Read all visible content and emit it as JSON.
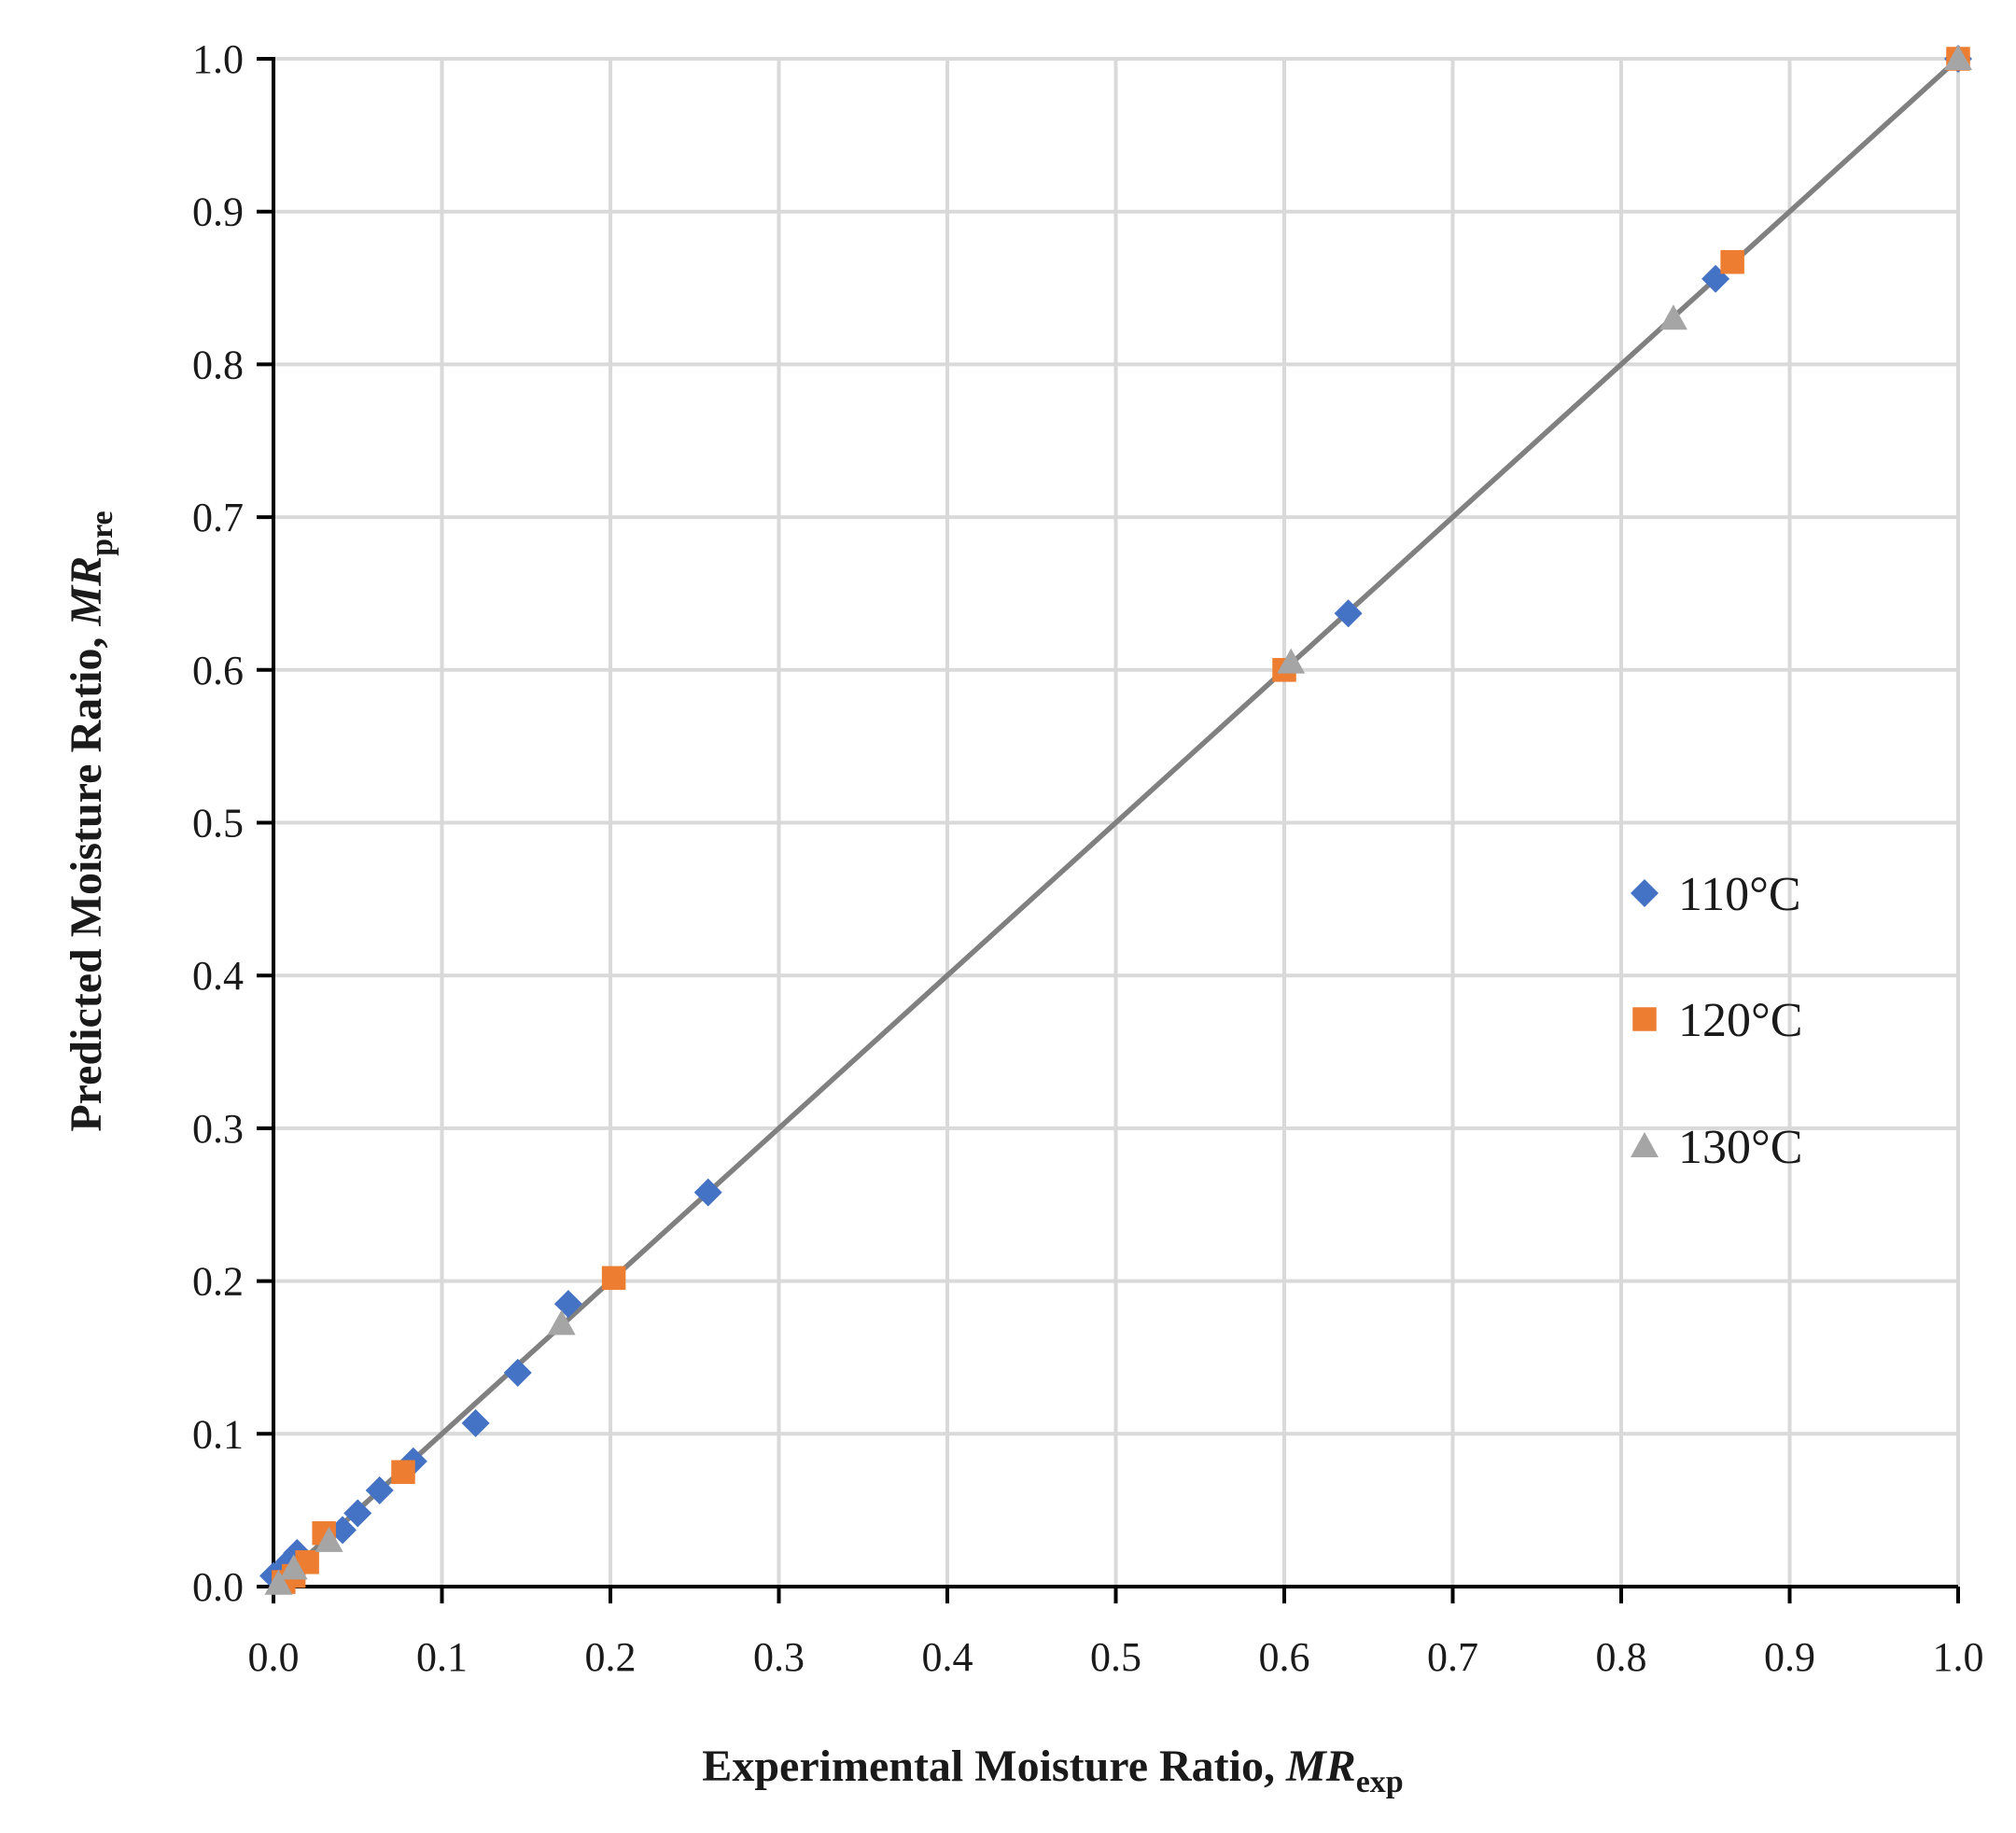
{
  "chart_data": {
    "type": "scatter",
    "title": "",
    "xlabel_main": "Experimental Moisture Ratio, ",
    "xlabel_var": "MR",
    "xlabel_sub": "exp",
    "ylabel_main": "Predicted Moisture Ratio, ",
    "ylabel_var": "MR",
    "ylabel_sub": "pre",
    "xlim": [
      0,
      1
    ],
    "ylim": [
      0,
      1
    ],
    "xticks": [
      "0.0",
      "0.1",
      "0.2",
      "0.3",
      "0.4",
      "0.5",
      "0.6",
      "0.7",
      "0.8",
      "0.9",
      "1.0"
    ],
    "yticks": [
      "0.0",
      "0.1",
      "0.2",
      "0.3",
      "0.4",
      "0.5",
      "0.6",
      "0.7",
      "0.8",
      "0.9",
      "1.0"
    ],
    "grid": true,
    "legend_position": "right-center",
    "fit_line": {
      "x": [
        0,
        1
      ],
      "y": [
        0,
        1
      ],
      "color": "#808080"
    },
    "series": [
      {
        "name": "110°C",
        "marker": "diamond",
        "color": "#4472C4",
        "points": [
          [
            1.0,
            1.0
          ],
          [
            0.856,
            0.856
          ],
          [
            0.638,
            0.637
          ],
          [
            0.258,
            0.258
          ],
          [
            0.175,
            0.185
          ],
          [
            0.145,
            0.14
          ],
          [
            0.12,
            0.107
          ],
          [
            0.083,
            0.082
          ],
          [
            0.063,
            0.063
          ],
          [
            0.05,
            0.048
          ],
          [
            0.041,
            0.037
          ],
          [
            0.014,
            0.022
          ],
          [
            0.009,
            0.016
          ],
          [
            0.005,
            0.01
          ],
          [
            0.0,
            0.007
          ]
        ]
      },
      {
        "name": "120°C",
        "marker": "square",
        "color": "#ED7D31",
        "points": [
          [
            1.0,
            1.0
          ],
          [
            0.866,
            0.867
          ],
          [
            0.6,
            0.6
          ],
          [
            0.202,
            0.202
          ],
          [
            0.077,
            0.075
          ],
          [
            0.03,
            0.035
          ],
          [
            0.02,
            0.016
          ],
          [
            0.012,
            0.007
          ],
          [
            0.006,
            0.003
          ]
        ]
      },
      {
        "name": "130°C",
        "marker": "triangle",
        "color": "#A5A5A5",
        "points": [
          [
            1.0,
            1.0
          ],
          [
            0.831,
            0.83
          ],
          [
            0.604,
            0.605
          ],
          [
            0.171,
            0.172
          ],
          [
            0.033,
            0.03
          ],
          [
            0.012,
            0.012
          ],
          [
            0.003,
            0.002
          ]
        ]
      }
    ]
  }
}
